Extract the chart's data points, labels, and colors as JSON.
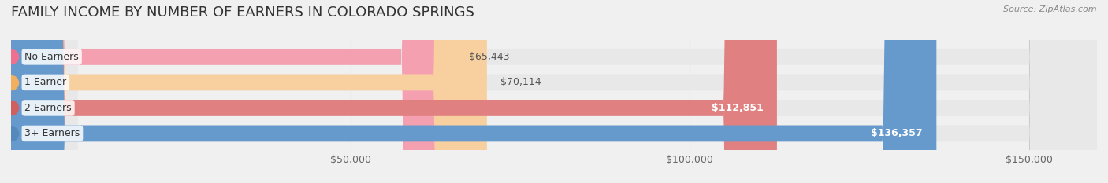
{
  "title": "FAMILY INCOME BY NUMBER OF EARNERS IN COLORADO SPRINGS",
  "source": "Source: ZipAtlas.com",
  "categories": [
    "No Earners",
    "1 Earner",
    "2 Earners",
    "3+ Earners"
  ],
  "values": [
    65443,
    70114,
    112851,
    136357
  ],
  "labels": [
    "$65,443",
    "$70,114",
    "$112,851",
    "$136,357"
  ],
  "bar_colors": [
    "#f4a0b0",
    "#f8d0a0",
    "#e08080",
    "#6699cc"
  ],
  "dot_colors": [
    "#f07090",
    "#f0b060",
    "#d06060",
    "#5588bb"
  ],
  "bg_color": "#f0f0f0",
  "bar_bg_color": "#e8e8e8",
  "xlim": [
    0,
    160000
  ],
  "xticks": [
    50000,
    100000,
    150000
  ],
  "xtick_labels": [
    "$50,000",
    "$100,000",
    "$150,000"
  ],
  "title_fontsize": 13,
  "label_fontsize": 9,
  "source_fontsize": 8,
  "bar_height": 0.62,
  "figsize": [
    14.06,
    2.33
  ],
  "dpi": 100
}
